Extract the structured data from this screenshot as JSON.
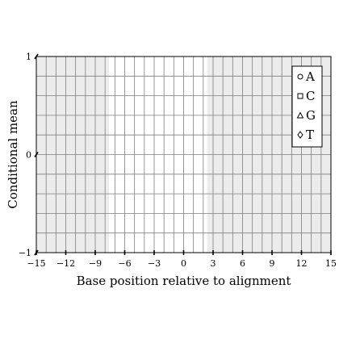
{
  "chart_data": {
    "type": "scatter",
    "title": "",
    "xlabel": "Base position relative to alignment",
    "ylabel": "Conditional mean",
    "xlim": [
      -15,
      15
    ],
    "ylim": [
      -1,
      1
    ],
    "x_ticks": [
      -15,
      -12,
      -9,
      -6,
      -3,
      0,
      3,
      6,
      9,
      12,
      15
    ],
    "x_tick_labels": [
      "−15",
      "−12",
      "−9",
      "−6",
      "−3",
      "0",
      "3",
      "6",
      "9",
      "12",
      "15"
    ],
    "y_ticks": [
      -1,
      0,
      1
    ],
    "y_tick_labels": [
      "−1",
      "0",
      "1"
    ],
    "grid": true,
    "shaded_regions": [
      {
        "from": -15,
        "to": -7.6
      },
      {
        "from": 2.4,
        "to": 15
      }
    ],
    "shade_color": "#ececec",
    "grid_color": "#7f7f7f",
    "legend_position": "top-right",
    "series": [
      {
        "name": "A",
        "marker": "circle",
        "points": []
      },
      {
        "name": "C",
        "marker": "square",
        "points": []
      },
      {
        "name": "G",
        "marker": "triangle",
        "points": []
      },
      {
        "name": "T",
        "marker": "diamond",
        "points": []
      }
    ]
  }
}
